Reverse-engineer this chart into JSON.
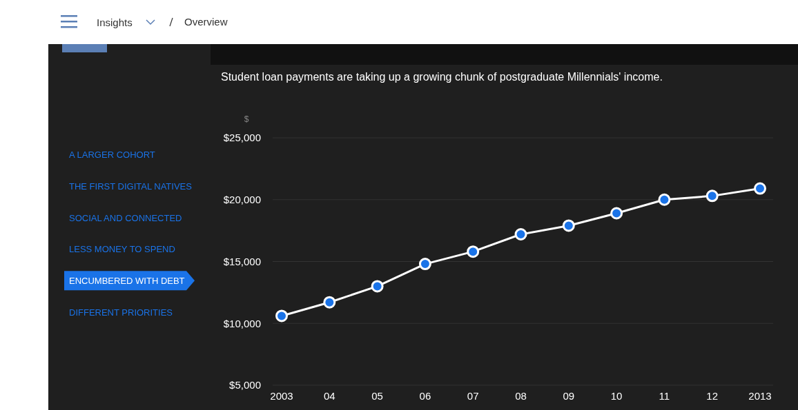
{
  "chart_data": {
    "type": "line",
    "title": "Student loan payments are taking up a growing chunk of postgraduate Millennials' income.",
    "ylabel": "$",
    "categories": [
      "2003",
      "04",
      "05",
      "06",
      "07",
      "08",
      "09",
      "10",
      "11",
      "12",
      "2013"
    ],
    "series": [
      {
        "color": "#ffffff",
        "values": [
          10600,
          11700,
          13000,
          14800,
          15800,
          17200,
          17900,
          18900,
          20000,
          20300,
          20900
        ]
      }
    ],
    "ylim": [
      5000,
      25000
    ],
    "yticks": [
      {
        "value": 5000,
        "label": "$5,000"
      },
      {
        "value": 10000,
        "label": "$10,000"
      },
      {
        "value": 15000,
        "label": "$15,000"
      },
      {
        "value": 20000,
        "label": "$20,000"
      },
      {
        "value": 25000,
        "label": "$25,000"
      }
    ],
    "grid": "y",
    "marker": "circle",
    "line_style": "solid",
    "annotations": [
      "Insights",
      "Overview",
      "A LARGER COHORT",
      "THE FIRST DIGITAL NATIVES",
      "SOCIAL AND CONNECTED",
      "LESS MONEY TO SPEND",
      "ENCUMBERED WITH DEBT",
      "DIFFERENT PRIORITIES"
    ]
  }
}
